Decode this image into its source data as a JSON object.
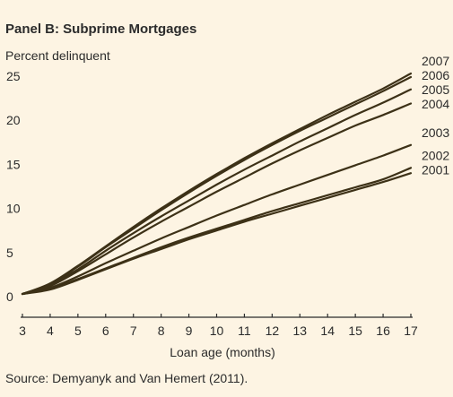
{
  "title": "Panel B: Subprime Mortgages",
  "source": "Source: Demyanyk and Van Hemert (2011).",
  "colors": {
    "background": "#fdf4e3",
    "line": "#3d3117",
    "axis": "#2b2b2b"
  },
  "chart_data": {
    "type": "line",
    "title": "Panel B: Subprime Mortgages",
    "ylabel": "Percent delinquent",
    "xlabel": "Loan age (months)",
    "xlim": [
      3,
      17
    ],
    "ylim": [
      0,
      25
    ],
    "grid": false,
    "legend": "direct labels at right end of lines",
    "x": [
      3,
      4,
      5,
      6,
      7,
      8,
      9,
      10,
      11,
      12,
      13,
      14,
      15,
      16,
      17
    ],
    "x_ticks": [
      3,
      4,
      5,
      6,
      7,
      8,
      9,
      10,
      11,
      12,
      13,
      14,
      15,
      16,
      17
    ],
    "y_ticks": [
      0,
      5,
      10,
      15,
      20,
      25
    ],
    "series": [
      {
        "name": "2007",
        "values": [
          0.3,
          1.5,
          3.5,
          5.7,
          7.9,
          10.0,
          12.0,
          13.9,
          15.7,
          17.4,
          19.0,
          20.6,
          22.1,
          23.6,
          25.3
        ]
      },
      {
        "name": "2006",
        "values": [
          0.3,
          1.4,
          3.4,
          5.6,
          7.7,
          9.8,
          11.8,
          13.7,
          15.5,
          17.2,
          18.8,
          20.3,
          21.8,
          23.3,
          24.9
        ]
      },
      {
        "name": "2005",
        "values": [
          0.3,
          1.3,
          3.1,
          5.2,
          7.2,
          9.1,
          10.9,
          12.7,
          14.4,
          16.0,
          17.6,
          19.1,
          20.6,
          22.0,
          23.5
        ]
      },
      {
        "name": "2004",
        "values": [
          0.3,
          1.2,
          2.9,
          4.8,
          6.7,
          8.5,
          10.2,
          11.9,
          13.5,
          15.1,
          16.6,
          18.0,
          19.4,
          20.6,
          21.9
        ]
      },
      {
        "name": "2003",
        "values": [
          0.3,
          1.0,
          2.3,
          3.8,
          5.2,
          6.6,
          7.9,
          9.2,
          10.4,
          11.6,
          12.7,
          13.8,
          14.9,
          16.0,
          17.2
        ]
      },
      {
        "name": "2002",
        "values": [
          0.3,
          0.9,
          2.0,
          3.2,
          4.4,
          5.6,
          6.7,
          7.7,
          8.7,
          9.7,
          10.6,
          11.5,
          12.4,
          13.3,
          14.6
        ]
      },
      {
        "name": "2001",
        "values": [
          0.3,
          0.8,
          1.9,
          3.1,
          4.3,
          5.4,
          6.5,
          7.5,
          8.5,
          9.4,
          10.3,
          11.2,
          12.1,
          13.0,
          14.0
        ]
      }
    ]
  }
}
